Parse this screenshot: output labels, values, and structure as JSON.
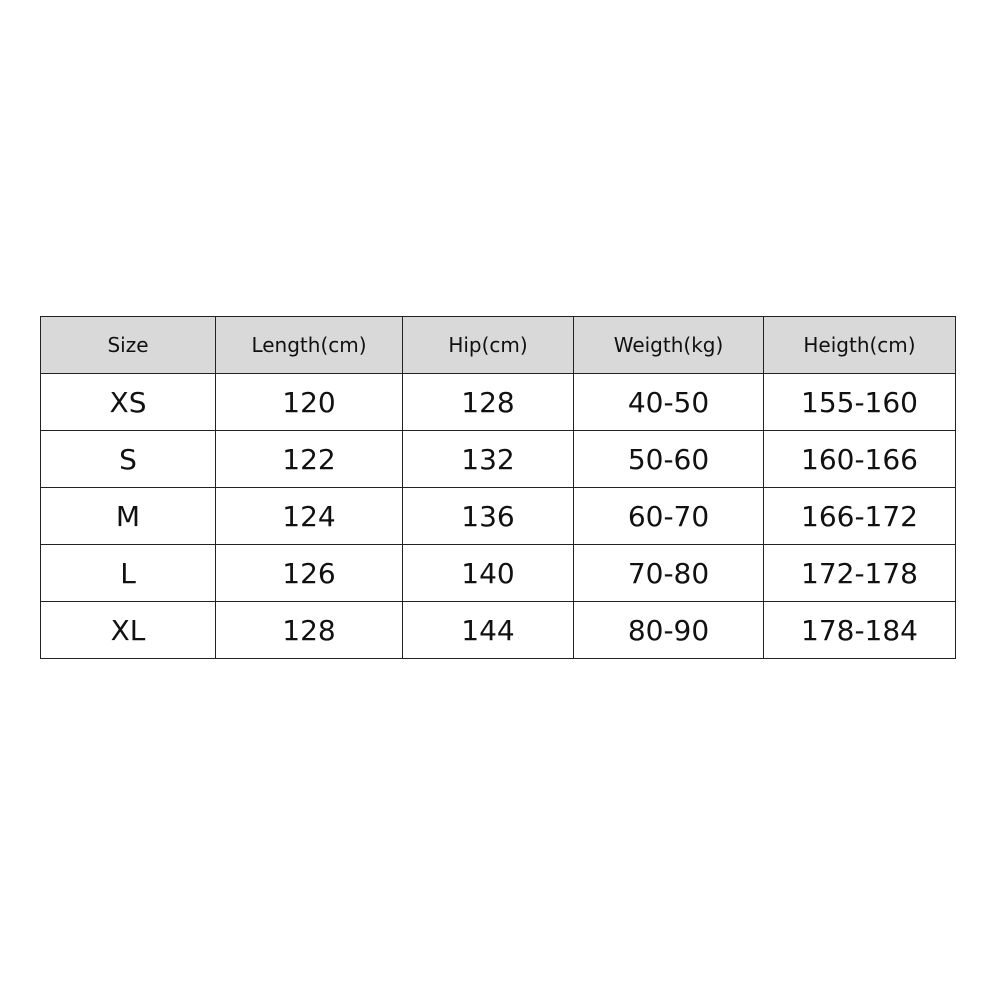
{
  "table": {
    "header": [
      "Size",
      "Length(cm)",
      "Hip(cm)",
      "Weigth(kg)",
      "Heigth(cm)"
    ],
    "rows": [
      [
        "XS",
        "120",
        "128",
        "40-50",
        "155-160"
      ],
      [
        "S",
        "122",
        "132",
        "50-60",
        "160-166"
      ],
      [
        "M",
        "124",
        "136",
        "60-70",
        "166-172"
      ],
      [
        "L",
        "126",
        "140",
        "70-80",
        "172-178"
      ],
      [
        "XL",
        "128",
        "144",
        "80-90",
        "178-184"
      ]
    ]
  }
}
